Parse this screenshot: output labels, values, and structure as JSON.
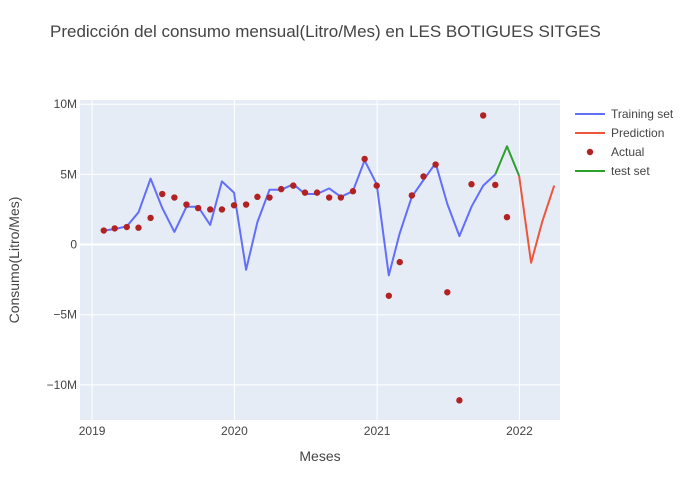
{
  "chart_data": {
    "type": "line",
    "title": "Predicción del consumo mensual(Litro/Mes) en LES BOTIGUES SITGES",
    "xlabel": "Meses",
    "ylabel": "Consumo(Litro/Mes)",
    "xlim": [
      "2018-12-01",
      "2022-04-15"
    ],
    "ylim": [
      -12500000,
      10300000
    ],
    "x_ticks": [
      {
        "date": "2019-01-01",
        "label": "2019"
      },
      {
        "date": "2020-01-01",
        "label": "2020"
      },
      {
        "date": "2021-01-01",
        "label": "2021"
      },
      {
        "date": "2022-01-01",
        "label": "2022"
      }
    ],
    "y_ticks": [
      {
        "value": 10000000,
        "label": "10M"
      },
      {
        "value": 5000000,
        "label": "5M"
      },
      {
        "value": 0,
        "label": "0"
      },
      {
        "value": -5000000,
        "label": "−5M"
      },
      {
        "value": -10000000,
        "label": "−10M"
      }
    ],
    "grid": true,
    "legend_position": "top-right",
    "series": [
      {
        "name": "Training set",
        "kind": "line",
        "color": "#636efa",
        "points": [
          [
            "2019-01-31",
            1000000
          ],
          [
            "2019-02-28",
            1100000
          ],
          [
            "2019-03-31",
            1300000
          ],
          [
            "2019-04-30",
            2300000
          ],
          [
            "2019-05-31",
            4700000
          ],
          [
            "2019-06-30",
            2600000
          ],
          [
            "2019-07-31",
            900000
          ],
          [
            "2019-08-31",
            2700000
          ],
          [
            "2019-09-30",
            2700000
          ],
          [
            "2019-10-31",
            1400000
          ],
          [
            "2019-11-30",
            4500000
          ],
          [
            "2019-12-31",
            3700000
          ],
          [
            "2020-01-31",
            -1800000
          ],
          [
            "2020-02-29",
            1600000
          ],
          [
            "2020-03-31",
            3900000
          ],
          [
            "2020-04-30",
            3900000
          ],
          [
            "2020-05-31",
            4300000
          ],
          [
            "2020-06-30",
            3600000
          ],
          [
            "2020-07-31",
            3600000
          ],
          [
            "2020-08-31",
            4000000
          ],
          [
            "2020-09-30",
            3400000
          ],
          [
            "2020-10-31",
            3800000
          ],
          [
            "2020-11-30",
            6000000
          ],
          [
            "2020-12-31",
            4300000
          ],
          [
            "2021-01-31",
            -2200000
          ],
          [
            "2021-02-28",
            800000
          ],
          [
            "2021-03-31",
            3400000
          ],
          [
            "2021-04-30",
            4600000
          ],
          [
            "2021-05-31",
            5800000
          ],
          [
            "2021-06-30",
            2900000
          ],
          [
            "2021-07-31",
            600000
          ],
          [
            "2021-08-31",
            2700000
          ],
          [
            "2021-09-30",
            4200000
          ],
          [
            "2021-10-31",
            5000000
          ]
        ]
      },
      {
        "name": "Prediction",
        "kind": "line",
        "color": "#ef553b",
        "points": [
          [
            "2021-12-31",
            4900000
          ],
          [
            "2022-01-31",
            -1300000
          ],
          [
            "2022-02-28",
            1600000
          ],
          [
            "2022-03-31",
            4200000
          ]
        ]
      },
      {
        "name": "Actual",
        "kind": "markers",
        "color": "#b22222",
        "points": [
          [
            "2019-01-31",
            1000000
          ],
          [
            "2019-02-28",
            1150000
          ],
          [
            "2019-03-31",
            1250000
          ],
          [
            "2019-04-30",
            1200000
          ],
          [
            "2019-05-31",
            1900000
          ],
          [
            "2019-06-30",
            3600000
          ],
          [
            "2019-07-31",
            3350000
          ],
          [
            "2019-08-31",
            2850000
          ],
          [
            "2019-09-30",
            2600000
          ],
          [
            "2019-10-31",
            2500000
          ],
          [
            "2019-11-30",
            2500000
          ],
          [
            "2019-12-31",
            2800000
          ],
          [
            "2020-01-31",
            2850000
          ],
          [
            "2020-02-29",
            3400000
          ],
          [
            "2020-03-31",
            3350000
          ],
          [
            "2020-04-30",
            3950000
          ],
          [
            "2020-05-31",
            4200000
          ],
          [
            "2020-06-30",
            3700000
          ],
          [
            "2020-07-31",
            3700000
          ],
          [
            "2020-08-31",
            3350000
          ],
          [
            "2020-09-30",
            3350000
          ],
          [
            "2020-10-31",
            3800000
          ],
          [
            "2020-11-30",
            6100000
          ],
          [
            "2020-12-31",
            4200000
          ],
          [
            "2021-01-31",
            -3650000
          ],
          [
            "2021-02-28",
            -1250000
          ],
          [
            "2021-03-31",
            3500000
          ],
          [
            "2021-04-30",
            4850000
          ],
          [
            "2021-05-31",
            5700000
          ],
          [
            "2021-06-30",
            -3400000
          ],
          [
            "2021-07-31",
            -11100000
          ],
          [
            "2021-08-31",
            4300000
          ],
          [
            "2021-09-30",
            9200000
          ],
          [
            "2021-10-31",
            4250000
          ],
          [
            "2021-11-30",
            1950000
          ]
        ]
      },
      {
        "name": "test set",
        "kind": "line",
        "color": "#2ca02c",
        "points": [
          [
            "2021-10-31",
            5000000
          ],
          [
            "2021-11-30",
            7000000
          ],
          [
            "2021-12-31",
            4900000
          ]
        ]
      }
    ]
  },
  "colors": {
    "plot_background": "#e5ecf6",
    "grid": "#ffffff",
    "text": "#444444"
  }
}
